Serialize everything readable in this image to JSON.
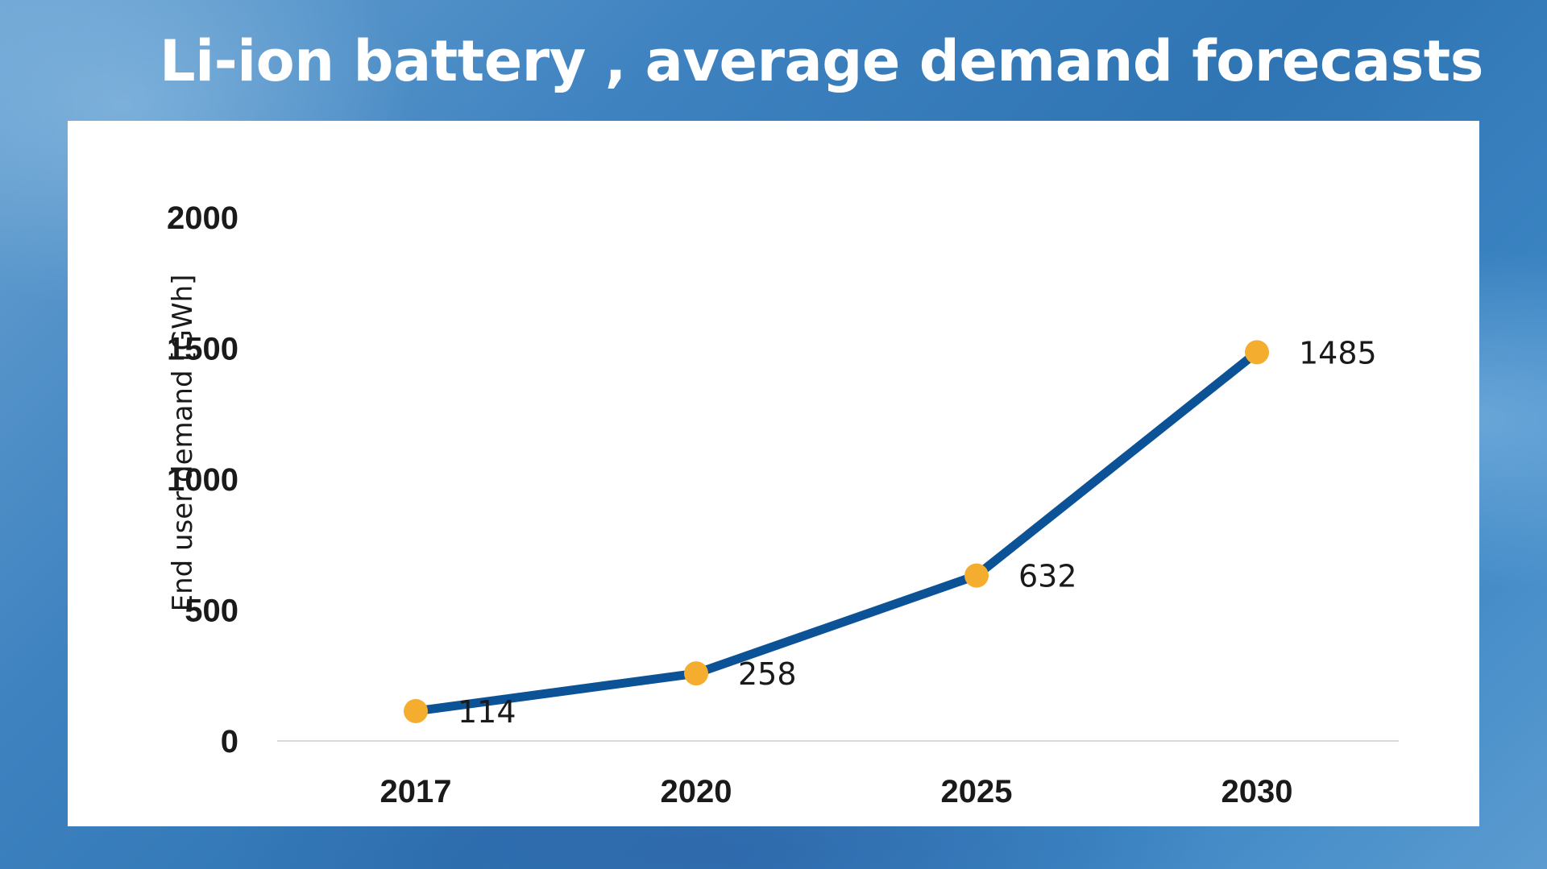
{
  "slide": {
    "title": "Li-ion battery , average demand forecasts"
  },
  "colors": {
    "line": "#0b5396",
    "marker": "#f5ad2f",
    "axis": "#d9d9d9"
  },
  "chart_data": {
    "type": "line",
    "title": "Li-ion battery , average demand forecasts",
    "xlabel": "",
    "ylabel": "End user demand [GWh]",
    "categories": [
      "2017",
      "2020",
      "2025",
      "2030"
    ],
    "series": [
      {
        "name": "End user demand",
        "values": [
          114,
          258,
          632,
          1485
        ],
        "data_labels": [
          "114",
          "258",
          "632",
          "1485"
        ]
      }
    ],
    "ylim": [
      0,
      2000
    ],
    "yticks": [
      "0",
      "500",
      "1000",
      "1500",
      "2000"
    ],
    "grid": false,
    "legend": "none"
  }
}
